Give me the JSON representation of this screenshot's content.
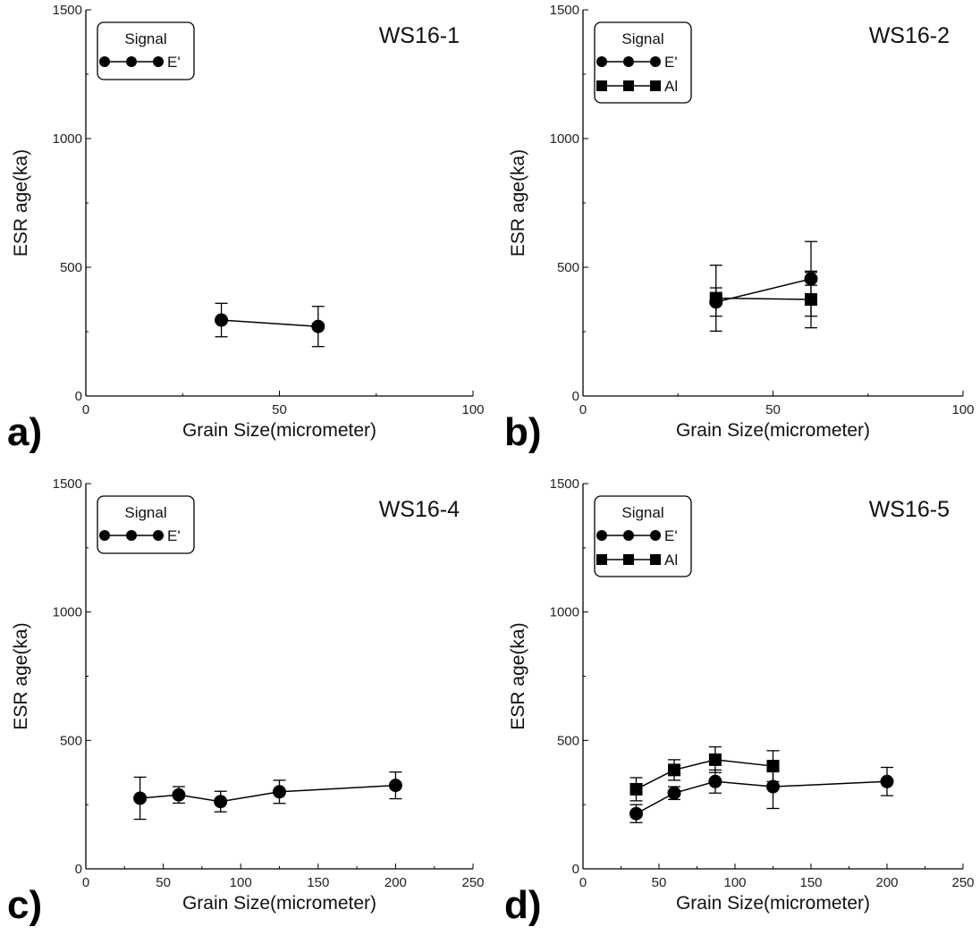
{
  "chart_data": [
    {
      "type": "line",
      "panel_label": "a)",
      "sample": "WS16-1",
      "xlabel": "Grain Size(micrometer)",
      "ylabel": "ESR age(ka)",
      "xlim": [
        0,
        100
      ],
      "ylim": [
        0,
        1500
      ],
      "xticks": [
        "0",
        "50",
        "100"
      ],
      "yticks": [
        "0",
        "500",
        "1000",
        "1500"
      ],
      "legend": {
        "title": "Signal",
        "placement": "top-left"
      },
      "series": [
        {
          "name": "E'",
          "marker": "circle",
          "points": [
            {
              "x": 35,
              "y": 295,
              "err": 65
            },
            {
              "x": 60,
              "y": 270,
              "err": 78
            }
          ]
        }
      ]
    },
    {
      "type": "line",
      "panel_label": "b)",
      "sample": "WS16-2",
      "xlabel": "Grain Size(micrometer)",
      "ylabel": "ESR age(ka)",
      "xlim": [
        0,
        100
      ],
      "ylim": [
        0,
        1500
      ],
      "xticks": [
        "0",
        "50",
        "100"
      ],
      "yticks": [
        "0",
        "500",
        "1000",
        "1500"
      ],
      "legend": {
        "title": "Signal",
        "placement": "top-left"
      },
      "series": [
        {
          "name": "E'",
          "marker": "circle",
          "points": [
            {
              "x": 35,
              "y": 365,
              "err": 55
            },
            {
              "x": 60,
              "y": 455,
              "err": 25
            }
          ]
        },
        {
          "name": "Al",
          "marker": "square",
          "points": [
            {
              "x": 35,
              "y": 380,
              "err": 128
            },
            {
              "x": 60,
              "y": 375,
              "err": 110
            }
          ]
        }
      ],
      "extra_error_caps": [
        {
          "x": 60,
          "y": 455,
          "err": 145
        }
      ]
    },
    {
      "type": "line",
      "panel_label": "c)",
      "sample": "WS16-4",
      "xlabel": "Grain Size(micrometer)",
      "ylabel": "ESR age(ka)",
      "xlim": [
        0,
        250
      ],
      "ylim": [
        0,
        1500
      ],
      "xticks": [
        "0",
        "50",
        "100",
        "150",
        "200",
        "250"
      ],
      "yticks": [
        "0",
        "500",
        "1000",
        "1500"
      ],
      "legend": {
        "title": "Signal",
        "placement": "top-left"
      },
      "series": [
        {
          "name": "E'",
          "marker": "circle",
          "points": [
            {
              "x": 35,
              "y": 275,
              "err": 82
            },
            {
              "x": 60,
              "y": 288,
              "err": 32
            },
            {
              "x": 87,
              "y": 262,
              "err": 40
            },
            {
              "x": 125,
              "y": 300,
              "err": 45
            },
            {
              "x": 200,
              "y": 325,
              "err": 52
            }
          ]
        }
      ]
    },
    {
      "type": "line",
      "panel_label": "d)",
      "sample": "WS16-5",
      "xlabel": "Grain Size(micrometer)",
      "ylabel": "ESR age(ka)",
      "xlim": [
        0,
        250
      ],
      "ylim": [
        0,
        1500
      ],
      "xticks": [
        "0",
        "50",
        "100",
        "150",
        "200",
        "250"
      ],
      "yticks": [
        "0",
        "500",
        "1000",
        "1500"
      ],
      "legend": {
        "title": "Signal",
        "placement": "top-left"
      },
      "series": [
        {
          "name": "E'",
          "marker": "circle",
          "points": [
            {
              "x": 35,
              "y": 215,
              "err": 35
            },
            {
              "x": 60,
              "y": 295,
              "err": 25
            },
            {
              "x": 87,
              "y": 340,
              "err": 45
            },
            {
              "x": 125,
              "y": 320,
              "err": 85
            },
            {
              "x": 200,
              "y": 340,
              "err": 55
            }
          ]
        },
        {
          "name": "Al",
          "marker": "square",
          "points": [
            {
              "x": 35,
              "y": 310,
              "err": 45
            },
            {
              "x": 60,
              "y": 385,
              "err": 40
            },
            {
              "x": 87,
              "y": 425,
              "err": 50
            },
            {
              "x": 125,
              "y": 400,
              "err": 60
            }
          ]
        }
      ]
    }
  ]
}
